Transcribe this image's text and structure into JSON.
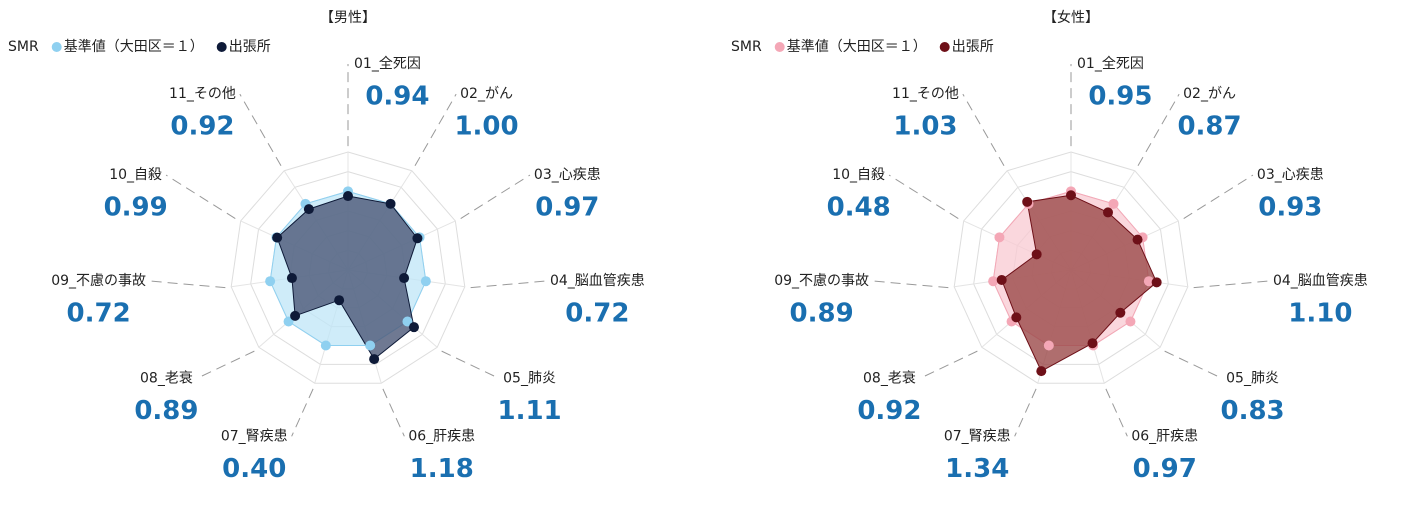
{
  "chart_data": [
    {
      "type": "radar",
      "title": "【男性】",
      "legend_title": "SMR",
      "categories": [
        "01_全死因",
        "02_がん",
        "03_心疾患",
        "04_脳血管疾患",
        "05_肺炎",
        "06_肝疾患",
        "07_腎疾患",
        "08_老衰",
        "09_不慮の事故",
        "10_自殺",
        "11_その他"
      ],
      "series": [
        {
          "name": "基準値（大田区＝１）",
          "color": "#8fd0f0",
          "fill": "#bfe5f7",
          "values": [
            1,
            1,
            1,
            1,
            1,
            1,
            1,
            1,
            1,
            1,
            1
          ]
        },
        {
          "name": "出張所",
          "color": "#0e1a38",
          "fill": "#4b5877",
          "values": [
            0.94,
            1.0,
            0.97,
            0.72,
            1.11,
            1.18,
            0.4,
            0.89,
            0.72,
            0.99,
            0.92
          ],
          "value_labels": [
            "0.94",
            "1.00",
            "0.97",
            "0.72",
            "1.11",
            "1.18",
            "0.40",
            "0.89",
            "0.72",
            "0.99",
            "0.92"
          ]
        }
      ],
      "rlim": [
        0,
        1.5
      ],
      "rticks": [
        0.25,
        0.5,
        0.75,
        1,
        1.25,
        1.5
      ]
    },
    {
      "type": "radar",
      "title": "【女性】",
      "legend_title": "SMR",
      "categories": [
        "01_全死因",
        "02_がん",
        "03_心疾患",
        "04_脳血管疾患",
        "05_肺炎",
        "06_肝疾患",
        "07_腎疾患",
        "08_老衰",
        "09_不慮の事故",
        "10_自殺",
        "11_その他"
      ],
      "series": [
        {
          "name": "基準値（大田区＝１）",
          "color": "#f4a7b6",
          "fill": "#f8c9d2",
          "values": [
            1,
            1,
            1,
            1,
            1,
            1,
            1,
            1,
            1,
            1,
            1
          ]
        },
        {
          "name": "出張所",
          "color": "#6e1018",
          "fill": "#9b4a4a",
          "values": [
            0.95,
            0.87,
            0.93,
            1.1,
            0.83,
            0.97,
            1.34,
            0.92,
            0.89,
            0.48,
            1.03
          ],
          "value_labels": [
            "0.95",
            "0.87",
            "0.93",
            "1.10",
            "0.83",
            "0.97",
            "1.34",
            "0.92",
            "0.89",
            "0.48",
            "1.03"
          ]
        }
      ],
      "rlim": [
        0,
        1.5
      ],
      "rticks": [
        0.25,
        0.5,
        0.75,
        1,
        1.25,
        1.5
      ]
    }
  ]
}
